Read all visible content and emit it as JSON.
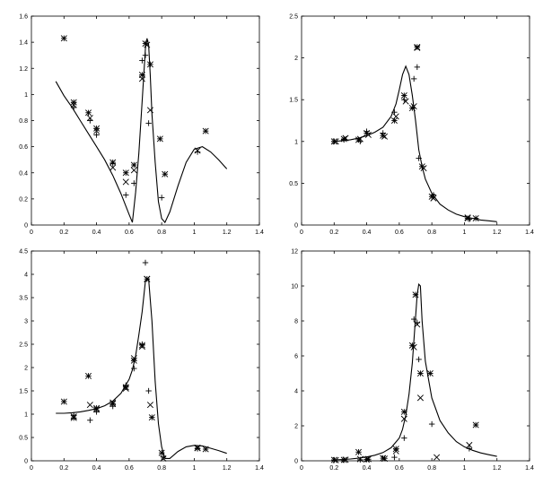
{
  "chart_data": [
    {
      "type": "scatter",
      "title": "",
      "xlabel": "",
      "ylabel": "",
      "xlim": [
        0,
        1.4
      ],
      "ylim": [
        0,
        1.6
      ],
      "grid": false,
      "xticks": [
        "0",
        "0.2",
        "0.4",
        "0.6",
        "0.8",
        "1",
        "1.2",
        "1.4"
      ],
      "yticks": [
        "0",
        "0.2",
        "0.4",
        "0.6",
        "0.8",
        "1",
        "1.2",
        "1.4",
        "1.6"
      ],
      "series": [
        {
          "marker": "line",
          "x": [
            0.15,
            0.2,
            0.25,
            0.3,
            0.35,
            0.4,
            0.45,
            0.5,
            0.55,
            0.6,
            0.62,
            0.64,
            0.66,
            0.68,
            0.7,
            0.71,
            0.72,
            0.73,
            0.74,
            0.76,
            0.78,
            0.8,
            0.82,
            0.85,
            0.9,
            0.95,
            1.0,
            1.05,
            1.1,
            1.15,
            1.2
          ],
          "y": [
            1.1,
            0.99,
            0.9,
            0.8,
            0.7,
            0.6,
            0.5,
            0.38,
            0.24,
            0.08,
            0.02,
            0.25,
            0.55,
            0.95,
            1.35,
            1.43,
            1.38,
            1.15,
            0.85,
            0.48,
            0.18,
            0.05,
            0.02,
            0.1,
            0.3,
            0.48,
            0.58,
            0.6,
            0.56,
            0.5,
            0.43
          ]
        },
        {
          "marker": "star",
          "x": [
            0.2,
            0.26,
            0.35,
            0.4,
            0.5,
            0.58,
            0.63,
            0.68,
            0.7,
            0.73,
            0.79,
            0.82,
            1.07
          ],
          "y": [
            1.43,
            0.94,
            0.86,
            0.74,
            0.48,
            0.4,
            0.46,
            1.15,
            1.39,
            1.23,
            0.66,
            0.39,
            0.72
          ]
        },
        {
          "marker": "cross",
          "x": [
            0.26,
            0.36,
            0.4,
            0.5,
            0.58,
            0.63,
            0.68,
            0.71,
            0.73,
            1.02
          ],
          "y": [
            0.92,
            0.82,
            0.72,
            0.44,
            0.33,
            0.42,
            1.12,
            1.38,
            0.88,
            0.57
          ]
        },
        {
          "marker": "plus",
          "x": [
            0.26,
            0.36,
            0.4,
            0.5,
            0.58,
            0.63,
            0.68,
            0.7,
            0.72,
            0.8,
            1.02
          ],
          "y": [
            0.9,
            0.8,
            0.69,
            0.47,
            0.23,
            0.32,
            1.26,
            1.3,
            0.78,
            0.21,
            0.56
          ]
        }
      ]
    },
    {
      "type": "scatter",
      "title": "",
      "xlabel": "",
      "ylabel": "",
      "xlim": [
        0,
        1.4
      ],
      "ylim": [
        0,
        2.5
      ],
      "grid": false,
      "xticks": [
        "0",
        "0.2",
        "0.4",
        "0.6",
        "0.8",
        "1",
        "1.2",
        "1.4"
      ],
      "yticks": [
        "0",
        "0.5",
        "1",
        "1.5",
        "2",
        "2.5"
      ],
      "series": [
        {
          "marker": "line",
          "x": [
            0.2,
            0.25,
            0.3,
            0.35,
            0.4,
            0.45,
            0.5,
            0.55,
            0.58,
            0.6,
            0.62,
            0.64,
            0.66,
            0.68,
            0.7,
            0.72,
            0.74,
            0.76,
            0.8,
            0.85,
            0.9,
            0.95,
            1.0,
            1.05,
            1.1,
            1.15,
            1.2
          ],
          "y": [
            1.0,
            1.01,
            1.02,
            1.04,
            1.07,
            1.11,
            1.17,
            1.3,
            1.45,
            1.62,
            1.8,
            1.9,
            1.8,
            1.55,
            1.25,
            0.9,
            0.7,
            0.55,
            0.38,
            0.25,
            0.18,
            0.13,
            0.1,
            0.08,
            0.06,
            0.05,
            0.04
          ]
        },
        {
          "marker": "star",
          "x": [
            0.2,
            0.26,
            0.35,
            0.4,
            0.5,
            0.57,
            0.63,
            0.68,
            0.71,
            0.74,
            0.8,
            1.02,
            1.07
          ],
          "y": [
            1.0,
            1.03,
            1.02,
            1.1,
            1.07,
            1.25,
            1.55,
            1.4,
            2.13,
            0.7,
            0.34,
            0.08,
            0.08
          ]
        },
        {
          "marker": "cross",
          "x": [
            0.21,
            0.27,
            0.36,
            0.41,
            0.51,
            0.58,
            0.64,
            0.69,
            0.71,
            0.75,
            0.81,
            1.02
          ],
          "y": [
            1.0,
            1.04,
            1.03,
            1.08,
            1.06,
            1.3,
            1.48,
            1.42,
            2.12,
            0.68,
            0.32,
            0.09
          ]
        },
        {
          "marker": "plus",
          "x": [
            0.2,
            0.26,
            0.36,
            0.4,
            0.5,
            0.57,
            0.63,
            0.69,
            0.71,
            0.72,
            0.81,
            1.03
          ],
          "y": [
            1.0,
            1.02,
            1.0,
            1.12,
            1.1,
            1.35,
            1.5,
            1.75,
            1.89,
            0.8,
            0.36,
            0.07
          ]
        }
      ]
    },
    {
      "type": "scatter",
      "title": "",
      "xlabel": "",
      "ylabel": "",
      "xlim": [
        0,
        1.4
      ],
      "ylim": [
        0,
        4.5
      ],
      "grid": false,
      "xticks": [
        "0",
        "0.2",
        "0.4",
        "0.6",
        "0.8",
        "1",
        "1.2",
        "1.4"
      ],
      "yticks": [
        "0",
        "0.5",
        "1",
        "1.5",
        "2",
        "2.5",
        "3",
        "3.5",
        "4",
        "4.5"
      ],
      "series": [
        {
          "marker": "line",
          "x": [
            0.15,
            0.2,
            0.25,
            0.3,
            0.35,
            0.4,
            0.45,
            0.5,
            0.55,
            0.6,
            0.62,
            0.64,
            0.66,
            0.68,
            0.7,
            0.72,
            0.74,
            0.76,
            0.78,
            0.8,
            0.82,
            0.85,
            0.9,
            0.95,
            1.0,
            1.05,
            1.1,
            1.15,
            1.2
          ],
          "y": [
            1.02,
            1.02,
            1.03,
            1.05,
            1.08,
            1.12,
            1.18,
            1.28,
            1.45,
            1.75,
            1.95,
            2.25,
            2.7,
            3.2,
            3.85,
            3.9,
            3.0,
            1.7,
            0.8,
            0.3,
            0.05,
            0.05,
            0.2,
            0.3,
            0.33,
            0.32,
            0.27,
            0.22,
            0.16
          ]
        },
        {
          "marker": "star",
          "x": [
            0.2,
            0.26,
            0.35,
            0.4,
            0.5,
            0.58,
            0.63,
            0.68,
            0.71,
            0.74,
            0.8,
            1.02,
            1.07
          ],
          "y": [
            1.27,
            0.92,
            1.82,
            1.13,
            1.22,
            1.58,
            2.15,
            2.48,
            3.9,
            0.93,
            0.17,
            0.27,
            0.25
          ]
        },
        {
          "marker": "cross",
          "x": [
            0.26,
            0.36,
            0.4,
            0.5,
            0.58,
            0.63,
            0.68,
            0.71,
            0.73,
            0.81,
            1.02
          ],
          "y": [
            0.95,
            1.2,
            1.1,
            1.25,
            1.55,
            2.2,
            2.45,
            3.9,
            1.2,
            0.05,
            0.28
          ]
        },
        {
          "marker": "plus",
          "x": [
            0.26,
            0.36,
            0.4,
            0.5,
            0.58,
            0.63,
            0.68,
            0.7,
            0.72,
            0.81,
            1.02
          ],
          "y": [
            0.98,
            0.87,
            1.05,
            1.17,
            1.62,
            1.98,
            2.5,
            4.25,
            1.5,
            0.08,
            0.26
          ]
        }
      ]
    },
    {
      "type": "scatter",
      "title": "",
      "xlabel": "",
      "ylabel": "",
      "xlim": [
        0,
        1.4
      ],
      "ylim": [
        0,
        12
      ],
      "grid": false,
      "xticks": [
        "0",
        "0.2",
        "0.4",
        "0.6",
        "0.8",
        "1",
        "1.2",
        "1.4"
      ],
      "yticks": [
        "0",
        "2",
        "4",
        "6",
        "8",
        "10",
        "12"
      ],
      "series": [
        {
          "marker": "line",
          "x": [
            0.2,
            0.25,
            0.3,
            0.35,
            0.4,
            0.45,
            0.5,
            0.55,
            0.6,
            0.62,
            0.64,
            0.66,
            0.68,
            0.7,
            0.71,
            0.72,
            0.73,
            0.74,
            0.76,
            0.8,
            0.85,
            0.9,
            0.95,
            1.0,
            1.05,
            1.1,
            1.15,
            1.2
          ],
          "y": [
            0.05,
            0.07,
            0.1,
            0.15,
            0.22,
            0.32,
            0.47,
            0.75,
            1.3,
            1.8,
            2.6,
            3.8,
            5.6,
            8.2,
            9.5,
            10.1,
            10.0,
            8.0,
            5.7,
            3.6,
            2.3,
            1.6,
            1.1,
            0.8,
            0.6,
            0.45,
            0.35,
            0.25
          ]
        },
        {
          "marker": "star",
          "x": [
            0.2,
            0.26,
            0.35,
            0.4,
            0.5,
            0.58,
            0.63,
            0.68,
            0.7,
            0.73,
            0.79,
            1.07
          ],
          "y": [
            0.05,
            0.05,
            0.5,
            0.08,
            0.15,
            0.68,
            2.8,
            6.6,
            9.5,
            5.0,
            5.0,
            2.05
          ]
        },
        {
          "marker": "cross",
          "x": [
            0.21,
            0.27,
            0.36,
            0.41,
            0.51,
            0.58,
            0.63,
            0.69,
            0.71,
            0.73,
            0.83,
            1.03
          ],
          "y": [
            0.04,
            0.06,
            0.1,
            0.1,
            0.12,
            0.55,
            2.4,
            6.5,
            7.8,
            3.6,
            0.2,
            0.9
          ]
        },
        {
          "marker": "plus",
          "x": [
            0.2,
            0.26,
            0.36,
            0.41,
            0.51,
            0.57,
            0.63,
            0.69,
            0.71,
            0.72,
            0.8,
            1.03
          ],
          "y": [
            0.04,
            0.05,
            0.06,
            0.09,
            0.14,
            0.2,
            1.3,
            8.1,
            7.9,
            5.8,
            2.1,
            0.7
          ]
        }
      ]
    }
  ]
}
